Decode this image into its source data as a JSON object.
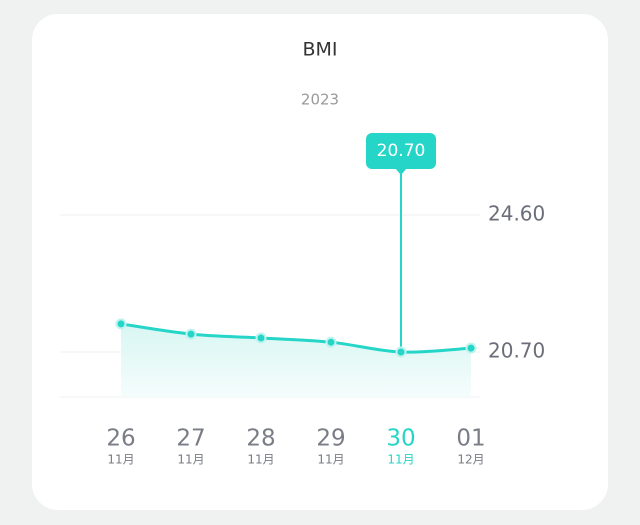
{
  "chart_data": {
    "type": "line",
    "title": "BMI",
    "subtitle": "2023",
    "categories": [
      "26",
      "27",
      "28",
      "29",
      "30",
      "01"
    ],
    "category_sublabels": [
      "11月",
      "11月",
      "11月",
      "11月",
      "11月",
      "12月"
    ],
    "series": [
      {
        "color": "#25d6c8",
        "values": [
          21.5,
          21.21,
          21.1,
          20.98,
          20.7,
          20.81
        ],
        "value_labels": [
          null,
          null,
          null,
          null,
          "20.70",
          null
        ]
      }
    ],
    "ylim": [
      19.42,
      24.6
    ],
    "yticks": [
      {
        "value": 24.6,
        "label": "24.60"
      },
      {
        "value": 20.7,
        "label": "20.70"
      }
    ],
    "grid": true
  }
}
